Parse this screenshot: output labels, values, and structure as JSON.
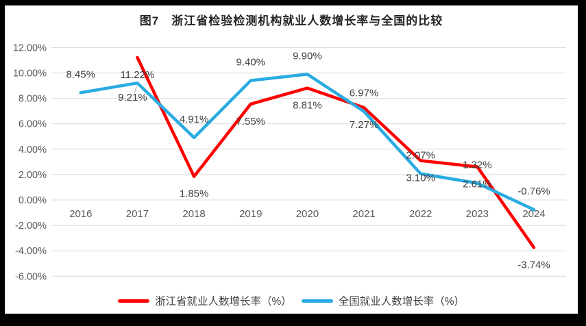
{
  "title": "图7　浙江省检验检测机构就业人数增长率与全国的比较",
  "chart_data": {
    "type": "line",
    "categories": [
      "2016",
      "2017",
      "2018",
      "2019",
      "2020",
      "2021",
      "2022",
      "2023",
      "2024"
    ],
    "series": [
      {
        "name": "浙江省就业人数增长率（%）",
        "color": "#fe0000",
        "values": [
          null,
          11.22,
          1.85,
          7.55,
          8.81,
          7.27,
          3.1,
          2.61,
          -3.74
        ],
        "point_labels": [
          null,
          "11.22%",
          "1.85%",
          "7.55%",
          "8.81%",
          "7.27%",
          "3.10%",
          "2.61%",
          "-3.74%"
        ],
        "label_position": "below"
      },
      {
        "name": "全国就业人数增长率（%）",
        "color": "#29abe2",
        "values": [
          8.45,
          9.21,
          4.91,
          9.4,
          9.9,
          6.97,
          2.07,
          1.32,
          -0.76
        ],
        "point_labels": [
          "8.45%",
          "9.21%",
          "4.91%",
          "9.40%",
          "9.90%",
          "6.97%",
          "2.07%",
          "1.32%",
          "-0.76%"
        ],
        "label_position": "above",
        "label_overrides": {
          "1": "below-with-leader"
        }
      }
    ],
    "ylim": [
      -6,
      12
    ],
    "ytick_step": 2,
    "ytick_labels": [
      "12.00%",
      "10.00%",
      "8.00%",
      "6.00%",
      "4.00%",
      "2.00%",
      "0.00%",
      "-2.00%",
      "-4.00%",
      "-6.00%"
    ],
    "grid": true,
    "legend_position": "bottom"
  },
  "colors": {
    "frame": "#000000",
    "panel_background": "#ffffff",
    "gridline": "#d9d9d9",
    "tick_label": "#595959",
    "axis_label": "#595959",
    "data_label": "#404040",
    "title": "#262626",
    "leader_line": "#a6a6a6"
  }
}
